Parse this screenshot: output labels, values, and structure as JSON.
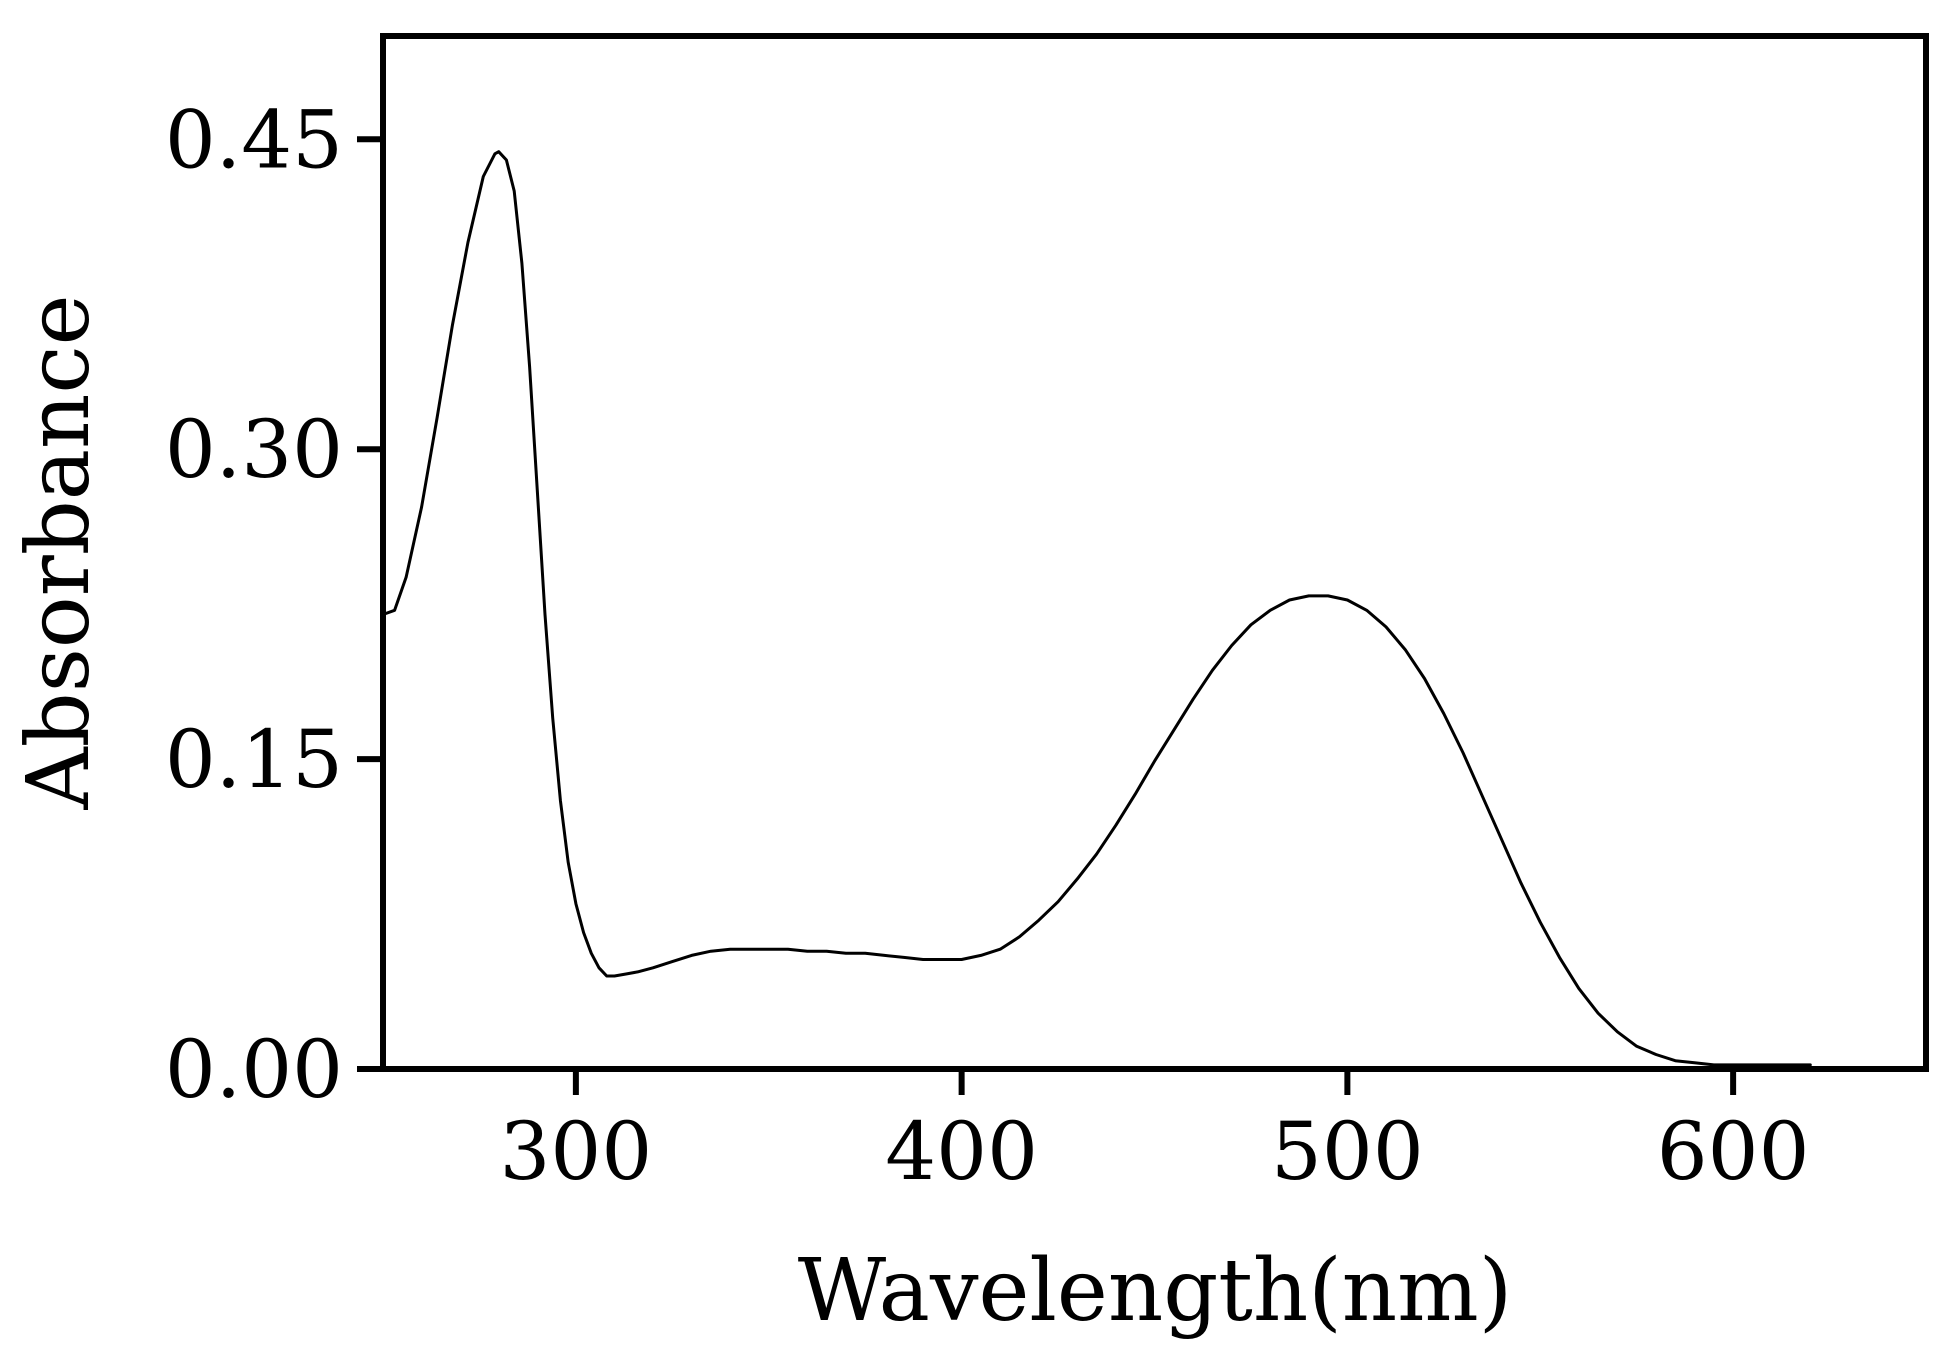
{
  "chart_data": {
    "type": "line",
    "title": "",
    "xlabel": "Wavelength(nm)",
    "ylabel": "Absorbance",
    "xlim": [
      250,
      650
    ],
    "ylim": [
      0,
      0.5
    ],
    "xticks": [
      300,
      400,
      500,
      600
    ],
    "xtick_labels": [
      "300",
      "400",
      "500",
      "600"
    ],
    "yticks": [
      0,
      0.15,
      0.3,
      0.45
    ],
    "ytick_labels": [
      "0.00",
      "0.15",
      "0.30",
      "0.45"
    ],
    "grid": false,
    "legend": "none",
    "line_color": "#000000",
    "series": [
      {
        "x": [
          250,
          253,
          256,
          260,
          264,
          268,
          272,
          276,
          279,
          280,
          282,
          284,
          286,
          288,
          290,
          292,
          294,
          296,
          298,
          300,
          302,
          304,
          306,
          308,
          310,
          313,
          316,
          320,
          325,
          330,
          335,
          340,
          345,
          350,
          355,
          360,
          365,
          370,
          375,
          380,
          385,
          390,
          395,
          400,
          405,
          410,
          415,
          420,
          425,
          430,
          435,
          440,
          445,
          450,
          455,
          460,
          465,
          470,
          475,
          480,
          485,
          490,
          495,
          500,
          505,
          510,
          515,
          520,
          525,
          530,
          535,
          540,
          545,
          550,
          555,
          560,
          565,
          570,
          575,
          580,
          585,
          590,
          595,
          600,
          605,
          610,
          615,
          620
        ],
        "y": [
          0.22,
          0.222,
          0.238,
          0.272,
          0.315,
          0.36,
          0.4,
          0.432,
          0.443,
          0.444,
          0.44,
          0.425,
          0.39,
          0.34,
          0.28,
          0.22,
          0.17,
          0.13,
          0.1,
          0.08,
          0.066,
          0.056,
          0.049,
          0.045,
          0.045,
          0.046,
          0.047,
          0.049,
          0.052,
          0.055,
          0.057,
          0.058,
          0.058,
          0.058,
          0.058,
          0.057,
          0.057,
          0.056,
          0.056,
          0.055,
          0.054,
          0.053,
          0.053,
          0.053,
          0.055,
          0.058,
          0.064,
          0.072,
          0.081,
          0.092,
          0.104,
          0.118,
          0.133,
          0.149,
          0.164,
          0.179,
          0.193,
          0.205,
          0.215,
          0.222,
          0.227,
          0.229,
          0.229,
          0.227,
          0.222,
          0.214,
          0.203,
          0.189,
          0.172,
          0.153,
          0.132,
          0.111,
          0.09,
          0.071,
          0.054,
          0.039,
          0.027,
          0.018,
          0.011,
          0.007,
          0.004,
          0.003,
          0.002,
          0.002,
          0.002,
          0.002,
          0.002,
          0.002
        ]
      }
    ]
  }
}
